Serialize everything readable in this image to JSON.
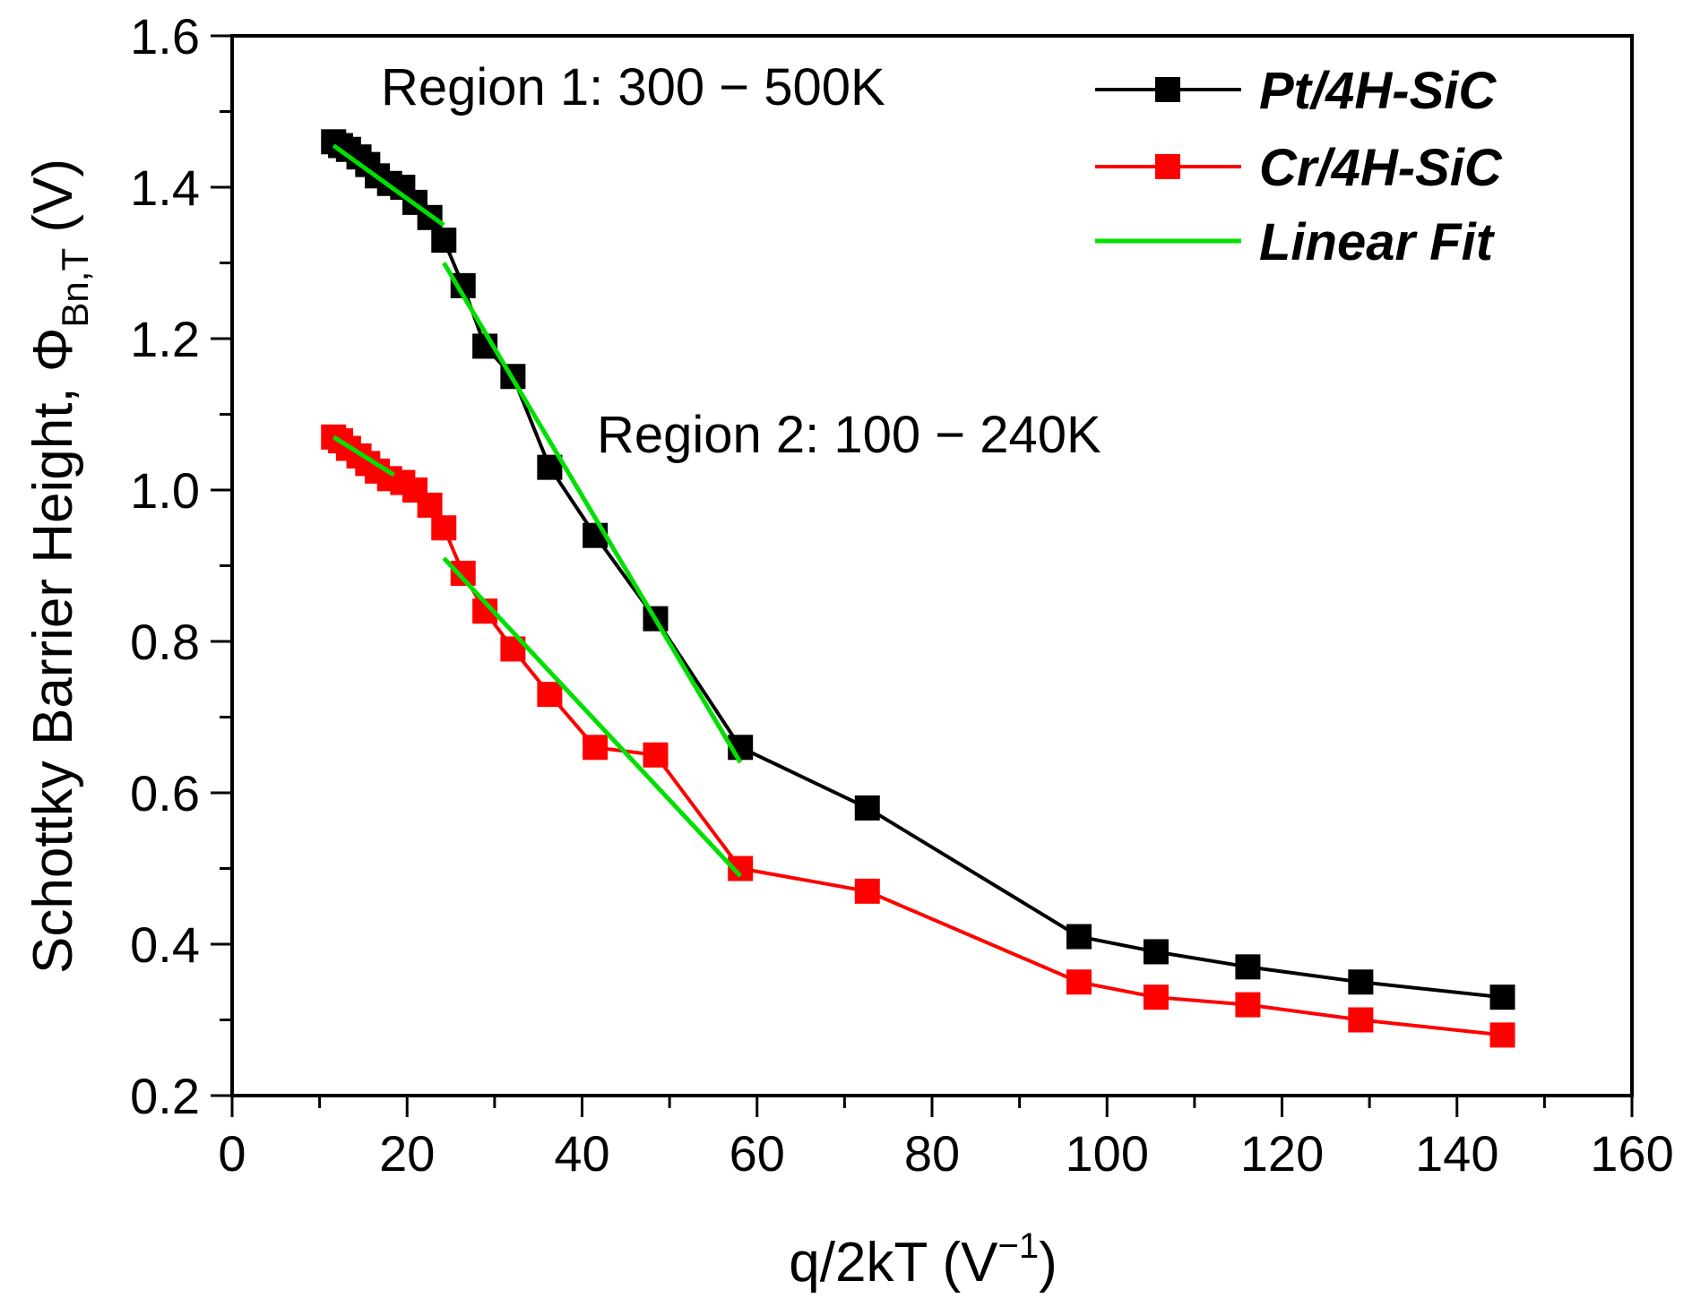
{
  "chart_data": {
    "type": "line",
    "xlabel": "q/2kT (V",
    "xlabel_superscript": "−1",
    "xlabel_close": ")",
    "ylabel_prefix": "Schottky Barrier Height, ",
    "ylabel_symbol": "Φ",
    "ylabel_subscript": "Bn,T",
    "ylabel_suffix": " (V)",
    "xlim": [
      0,
      160
    ],
    "ylim": [
      0.2,
      1.6
    ],
    "xticks": [
      0,
      20,
      40,
      60,
      80,
      100,
      120,
      140,
      160
    ],
    "yticks": [
      0.2,
      0.4,
      0.6,
      0.8,
      1.0,
      1.2,
      1.4,
      1.6
    ],
    "xtick_labels": [
      "0",
      "20",
      "40",
      "60",
      "80",
      "100",
      "120",
      "140",
      "160"
    ],
    "ytick_labels": [
      "0.2",
      "0.4",
      "0.6",
      "0.8",
      "1.0",
      "1.2",
      "1.4",
      "1.6"
    ],
    "x_minor_step": 10,
    "y_minor_step": 0.1,
    "grid": false,
    "legend_position": "top-right",
    "annotations": [
      {
        "text": "Region 1: 300 − 500K"
      },
      {
        "text": "Region 2: 100 − 240K"
      }
    ],
    "series": [
      {
        "name": "Pt/4H-SiC",
        "color": "#000000",
        "marker": "square",
        "x": [
          11.6,
          12.4,
          13.3,
          14.5,
          15.5,
          16.6,
          18.0,
          19.5,
          20.9,
          22.6,
          24.2,
          26.4,
          28.9,
          32.1,
          36.3,
          41.5,
          48.4,
          58.1,
          72.6,
          96.8,
          105.6,
          116.1,
          129.0,
          145.2
        ],
        "y": [
          1.46,
          1.455,
          1.45,
          1.44,
          1.43,
          1.415,
          1.405,
          1.4,
          1.38,
          1.36,
          1.33,
          1.27,
          1.19,
          1.15,
          1.03,
          0.94,
          0.83,
          0.66,
          0.58,
          0.41,
          0.39,
          0.37,
          0.35,
          0.33
        ]
      },
      {
        "name": "Cr/4H-SiC",
        "color": "#ff0000",
        "marker": "square",
        "x": [
          11.6,
          12.4,
          13.3,
          14.5,
          15.5,
          16.6,
          18.0,
          19.5,
          20.9,
          22.6,
          24.2,
          26.4,
          28.9,
          32.1,
          36.3,
          41.5,
          48.4,
          58.1,
          72.6,
          96.8,
          105.6,
          116.1,
          129.0,
          145.2
        ],
        "y": [
          1.07,
          1.065,
          1.055,
          1.045,
          1.035,
          1.025,
          1.015,
          1.01,
          1.0,
          0.98,
          0.95,
          0.89,
          0.84,
          0.79,
          0.73,
          0.66,
          0.65,
          0.5,
          0.47,
          0.35,
          0.33,
          0.32,
          0.3,
          0.28
        ]
      }
    ],
    "linear_fits": {
      "name": "Linear Fit",
      "color": "#00e000",
      "segments": [
        {
          "x": [
            11.6,
            24.2
          ],
          "y": [
            1.455,
            1.35
          ]
        },
        {
          "x": [
            24.2,
            58.1
          ],
          "y": [
            1.3,
            0.64
          ]
        },
        {
          "x": [
            11.6,
            18.5
          ],
          "y": [
            1.07,
            1.02
          ]
        },
        {
          "x": [
            24.2,
            58.1
          ],
          "y": [
            0.91,
            0.49
          ]
        }
      ]
    }
  }
}
